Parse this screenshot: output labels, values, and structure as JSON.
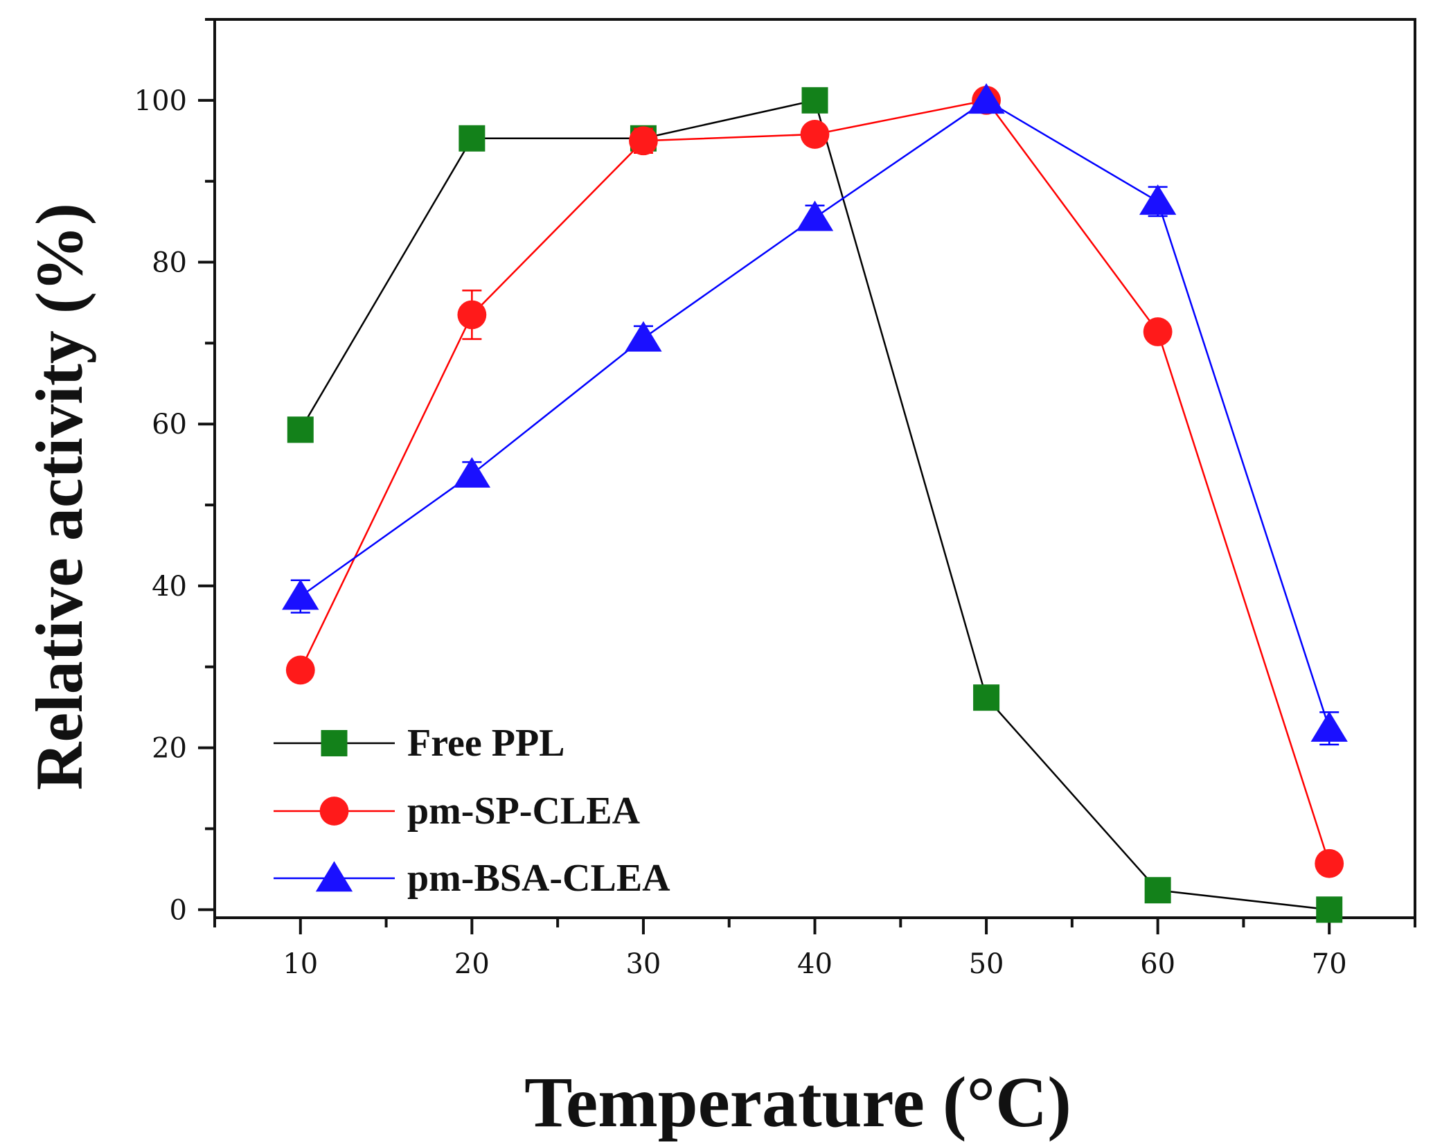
{
  "chart_data": {
    "type": "line",
    "title": "",
    "xlabel": "Temperature (°C)",
    "ylabel": "Relative activity (%)",
    "xlim": [
      5,
      75
    ],
    "ylim": [
      -1,
      110
    ],
    "xticks": [
      10,
      20,
      30,
      40,
      50,
      60,
      70
    ],
    "yticks": [
      0,
      20,
      40,
      60,
      80,
      100
    ],
    "x": [
      10,
      20,
      30,
      40,
      50,
      60,
      70
    ],
    "legend_position": "bottom-left",
    "series": [
      {
        "name": "Free PPL",
        "marker": "square",
        "line_color": "#000000",
        "marker_color": "#13811a",
        "values": [
          59.3,
          95.3,
          95.3,
          100,
          26.2,
          2.4,
          0
        ],
        "errors": [
          0,
          0,
          0,
          0,
          0,
          0,
          0
        ]
      },
      {
        "name": "pm-SP-CLEA",
        "marker": "circle",
        "line_color": "#ff0000",
        "marker_color": "#ff1a1a",
        "values": [
          29.6,
          73.5,
          95.0,
          95.8,
          100,
          71.4,
          5.7
        ],
        "errors": [
          0,
          3.0,
          1.5,
          0,
          0,
          0,
          0
        ]
      },
      {
        "name": "pm-BSA-CLEA",
        "marker": "triangle",
        "line_color": "#0000ff",
        "marker_color": "#1a10ff",
        "values": [
          38.7,
          53.8,
          70.6,
          85.5,
          100,
          87.5,
          22.4
        ],
        "errors": [
          2.0,
          1.5,
          1.5,
          1.5,
          0,
          1.8,
          2.0
        ]
      }
    ]
  }
}
